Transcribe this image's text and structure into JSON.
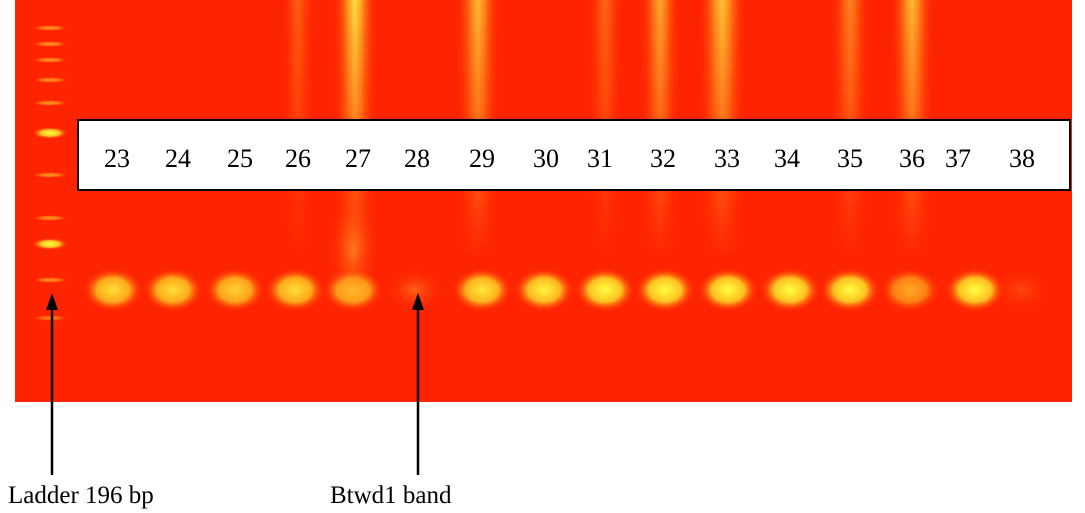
{
  "figure": {
    "lanes": [
      "23",
      "24",
      "25",
      "26",
      "27",
      "28",
      "29",
      "30",
      "31",
      "32",
      "33",
      "34",
      "35",
      "36",
      "37",
      "38"
    ],
    "annotations": [
      "Ladder 196 bp",
      "Btwd1 band"
    ]
  }
}
